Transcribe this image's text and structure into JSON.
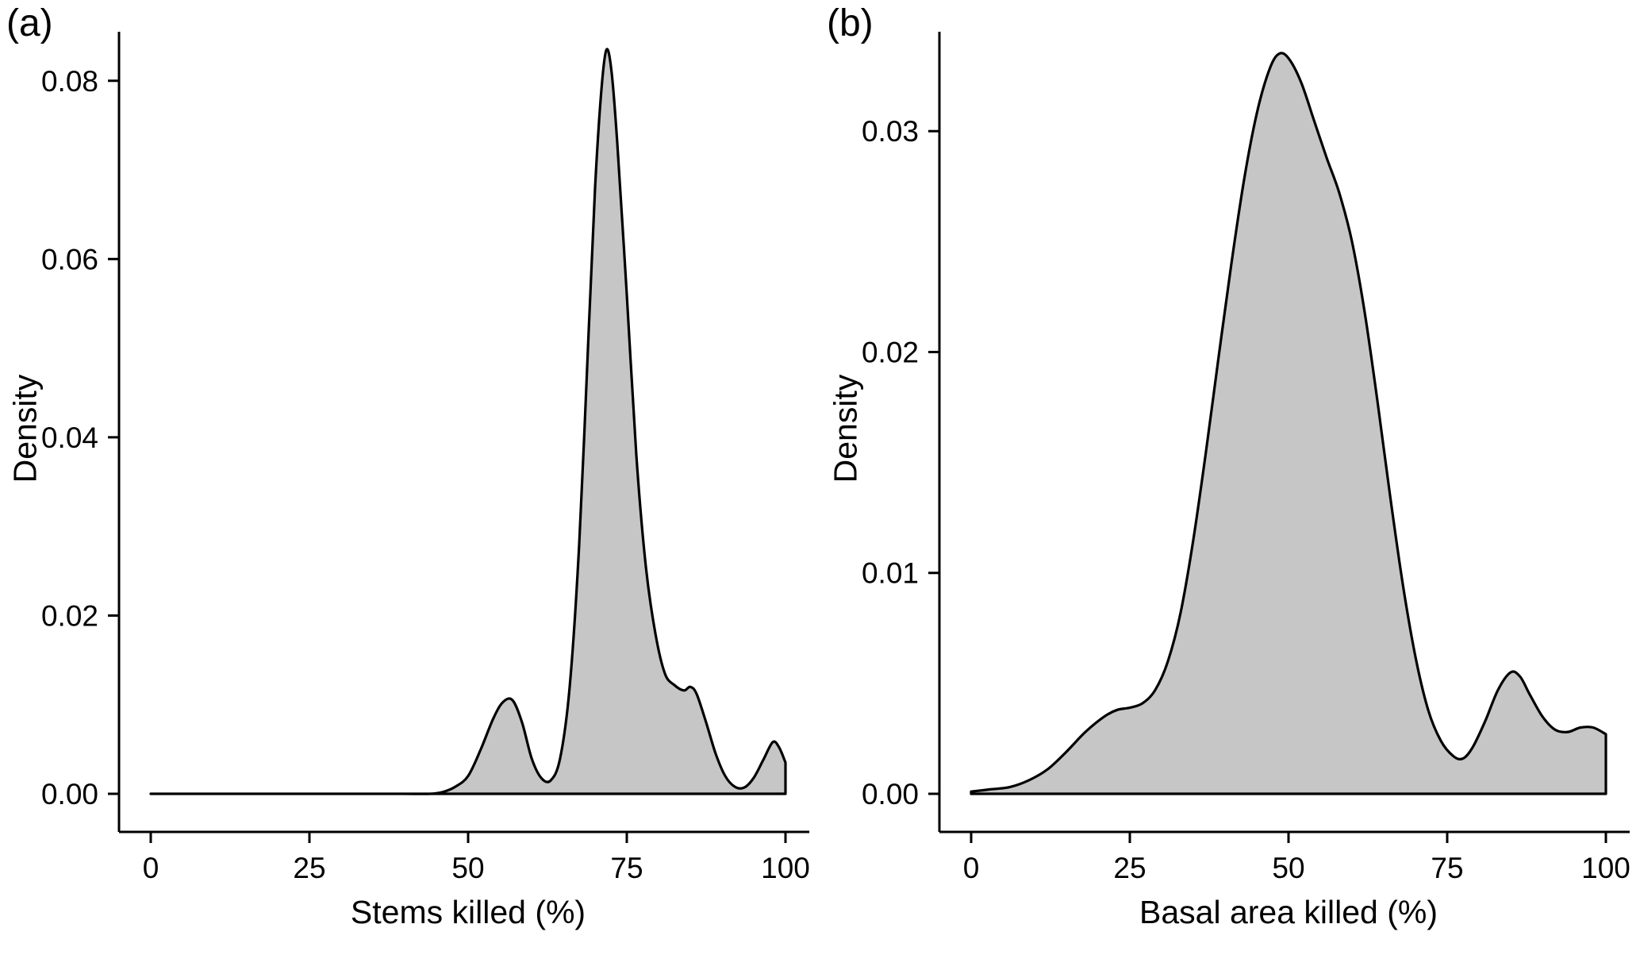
{
  "figure": {
    "background": "#ffffff",
    "text_color": "#000000"
  },
  "chart_data": [
    {
      "type": "area",
      "panel_label": "(a)",
      "title": "",
      "xlabel": "Stems killed (%)",
      "ylabel": "Density",
      "xlim": [
        0,
        100
      ],
      "ylim": [
        0,
        0.0855
      ],
      "xticks": [
        0,
        25,
        50,
        75,
        100
      ],
      "xtick_labels": [
        "0",
        "25",
        "50",
        "75",
        "100"
      ],
      "yticks": [
        0,
        0.02,
        0.04,
        0.06,
        0.08
      ],
      "ytick_labels": [
        "0.00",
        "0.02",
        "0.04",
        "0.06",
        "0.08"
      ],
      "grid": false,
      "legend": "none",
      "fill_color": "#c6c6c6",
      "line_color": "#000000",
      "x": [
        0,
        5,
        10,
        15,
        20,
        25,
        30,
        35,
        40,
        44,
        46,
        48,
        50,
        52,
        54,
        55.5,
        57,
        58.5,
        60,
        61.5,
        63,
        64.5,
        66,
        67.5,
        69,
        70,
        71,
        71.8,
        72.6,
        73.5,
        75,
        76.5,
        78,
        79.5,
        81,
        82.5,
        84,
        85,
        86,
        87.5,
        89,
        90.5,
        92,
        93.5,
        95,
        96.5,
        98,
        99,
        100
      ],
      "y": [
        0,
        0,
        0,
        0,
        0,
        0,
        0,
        0,
        0,
        0,
        0.0002,
        0.0008,
        0.002,
        0.005,
        0.0085,
        0.0103,
        0.0105,
        0.008,
        0.004,
        0.0018,
        0.0015,
        0.004,
        0.012,
        0.028,
        0.052,
        0.068,
        0.079,
        0.0835,
        0.081,
        0.073,
        0.056,
        0.038,
        0.0255,
        0.018,
        0.0135,
        0.0122,
        0.0116,
        0.012,
        0.0112,
        0.008,
        0.0045,
        0.002,
        0.0008,
        0.0007,
        0.0018,
        0.0038,
        0.0058,
        0.0052,
        0.0035
      ]
    },
    {
      "type": "area",
      "panel_label": "(b)",
      "title": "",
      "xlabel": "Basal area killed (%)",
      "ylabel": "Density",
      "xlim": [
        0,
        100
      ],
      "ylim": [
        0,
        0.0345
      ],
      "xticks": [
        0,
        25,
        50,
        75,
        100
      ],
      "xtick_labels": [
        "0",
        "25",
        "50",
        "75",
        "100"
      ],
      "yticks": [
        0,
        0.01,
        0.02,
        0.03
      ],
      "ytick_labels": [
        "0.00",
        "0.01",
        "0.02",
        "0.03"
      ],
      "grid": false,
      "legend": "none",
      "fill_color": "#c6c6c6",
      "line_color": "#000000",
      "x": [
        0,
        3,
        6,
        9,
        12,
        15,
        18,
        21,
        23,
        25,
        27,
        29,
        31,
        33,
        35,
        37,
        39,
        41,
        43,
        45,
        47,
        48.5,
        50,
        52,
        54,
        56,
        58,
        60,
        62,
        64,
        66,
        68,
        70,
        72,
        74,
        76,
        77.5,
        79,
        81,
        83,
        85,
        86.5,
        88,
        90,
        92,
        94,
        96,
        98,
        100
      ],
      "y": [
        0.0001,
        0.0002,
        0.0003,
        0.0006,
        0.0011,
        0.0019,
        0.0028,
        0.0035,
        0.0038,
        0.0039,
        0.0041,
        0.0047,
        0.006,
        0.0082,
        0.0115,
        0.0155,
        0.0198,
        0.024,
        0.0278,
        0.0308,
        0.0328,
        0.0335,
        0.0333,
        0.0322,
        0.0305,
        0.0288,
        0.0272,
        0.025,
        0.0218,
        0.0178,
        0.0135,
        0.0095,
        0.0062,
        0.0038,
        0.0024,
        0.0017,
        0.0016,
        0.0021,
        0.0033,
        0.0047,
        0.0055,
        0.0053,
        0.0045,
        0.0035,
        0.0029,
        0.0028,
        0.003,
        0.003,
        0.0027
      ]
    }
  ]
}
